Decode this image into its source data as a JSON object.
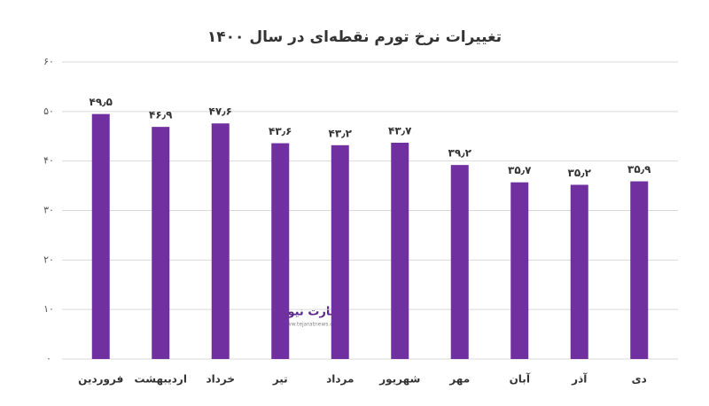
{
  "chart_data": {
    "type": "bar",
    "title": "تغییرات نرخ تورم نقطه‌ای در سال ۱۴۰۰",
    "categories": [
      "فروردین",
      "اردیبهشت",
      "خرداد",
      "تیر",
      "مرداد",
      "شهریور",
      "مهر",
      "آبان",
      "آذر",
      "دی"
    ],
    "values": [
      49.5,
      46.9,
      47.6,
      43.6,
      43.2,
      43.7,
      39.2,
      35.7,
      35.2,
      35.9
    ],
    "value_labels": [
      "۴۹٫۵",
      "۴۶٫۹",
      "۴۷٫۶",
      "۴۳٫۶",
      "۴۳٫۲",
      "۴۳٫۷",
      "۳۹٫۲",
      "۳۵٫۷",
      "۳۵٫۲",
      "۳۵٫۹"
    ],
    "color": "#7030a0",
    "ylim": [
      0,
      60
    ],
    "yticks": [
      {
        "value": 0,
        "label": "۰"
      },
      {
        "value": 10,
        "label": "۱۰"
      },
      {
        "value": 20,
        "label": "۲۰"
      },
      {
        "value": 30,
        "label": "۳۰"
      },
      {
        "value": 40,
        "label": "۴۰"
      },
      {
        "value": 50,
        "label": "۵۰"
      },
      {
        "value": 60,
        "label": "۶۰"
      }
    ],
    "grid": true,
    "watermark": {
      "brand": "تجارت نیوز",
      "url": "www.tejaratnews.com"
    }
  }
}
